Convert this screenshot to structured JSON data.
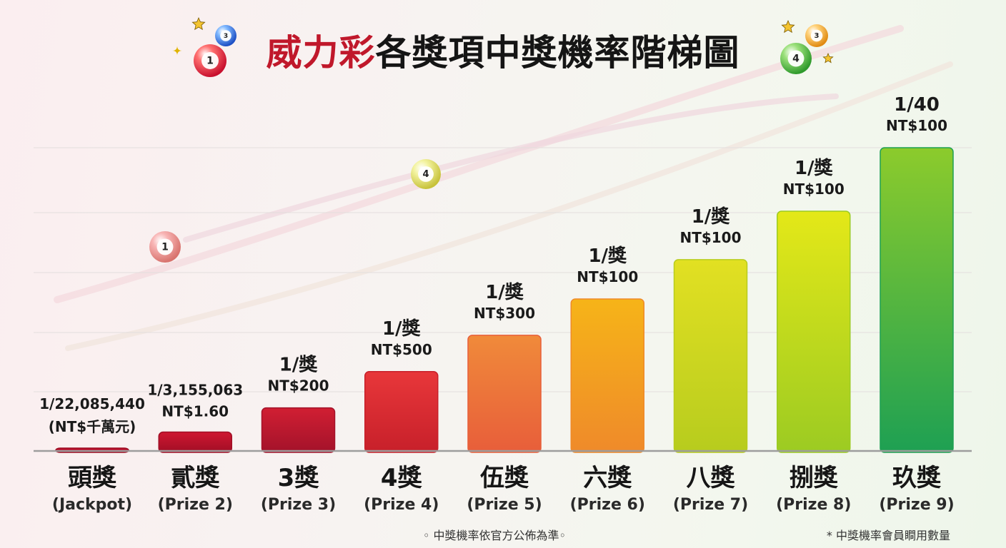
{
  "title": {
    "accent": "威力彩",
    "rest": "各獎項中獎機率階梯圖"
  },
  "decor_balls": [
    "1",
    "3",
    "3",
    "4",
    "1",
    "4"
  ],
  "chart_data": {
    "type": "bar",
    "title": "威力彩各獎項中獎機率階梯圖",
    "categories": [
      {
        "zh": "頭獎",
        "en": "(Jackpot)"
      },
      {
        "zh": "貳獎",
        "en": "(Prize 2)"
      },
      {
        "zh": "3獎",
        "en": "(Prize 3)"
      },
      {
        "zh": "4獎",
        "en": "(Prize 4)"
      },
      {
        "zh": "伍獎",
        "en": "(Prize 5)"
      },
      {
        "zh": "六獎",
        "en": "(Prize 6)"
      },
      {
        "zh": "八獎",
        "en": "(Prize 7)"
      },
      {
        "zh": "捌獎",
        "en": "(Prize 8)"
      },
      {
        "zh": "玖獎",
        "en": "(Prize 9)"
      }
    ],
    "odds_labels": [
      "1/22,085,440",
      "1/3,155,063",
      "1/獎",
      "1/獎",
      "1/獎",
      "1/獎",
      "1/獎",
      "1/獎",
      "1/40"
    ],
    "prize_labels": [
      "(NT$千萬元)",
      "NT$1.60",
      "NT$200",
      "NT$500",
      "NT$300",
      "NT$100",
      "NT$100",
      "NT$100",
      "NT$100"
    ],
    "bar_levels_percent": [
      0.7,
      6,
      14,
      26,
      38,
      50,
      63,
      79,
      100
    ],
    "bar_colors": [
      [
        "#c8102e",
        "#9c0c22"
      ],
      [
        "#cf1731",
        "#a10e25"
      ],
      [
        "#d11f33",
        "#a3122a"
      ],
      [
        "#e8373a",
        "#c7202a"
      ],
      [
        "#f08a3a",
        "#e85e3a"
      ],
      [
        "#f6b418",
        "#ef8a2a"
      ],
      [
        "#e2e022",
        "#b7cc1e"
      ],
      [
        "#e4e818",
        "#9ccb22"
      ],
      [
        "#8ccb2c",
        "#1ea053"
      ]
    ],
    "grid": true,
    "legend": "none"
  },
  "footnotes": {
    "left": "◦ 中獎機率依官方公佈為準◦",
    "right": "* 中獎機率會員瞷用數量"
  }
}
